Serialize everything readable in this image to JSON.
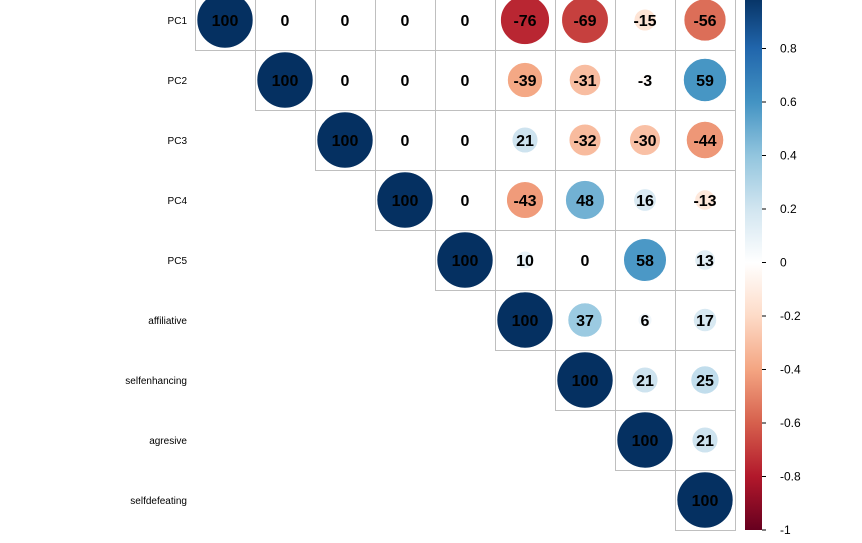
{
  "chart_data": {
    "type": "heatmap",
    "style": "upper-triangle correlation matrix, circles sized and colored by value",
    "variables": [
      "PC1",
      "PC2",
      "PC3",
      "PC4",
      "PC5",
      "affiliative",
      "selfenhancing",
      "agresive",
      "selfdefeating"
    ],
    "values": [
      [
        100,
        0,
        0,
        0,
        0,
        -76,
        -69,
        -15,
        -56
      ],
      [
        null,
        100,
        0,
        0,
        0,
        -39,
        -31,
        -3,
        59
      ],
      [
        null,
        null,
        100,
        0,
        0,
        21,
        -32,
        -30,
        -44
      ],
      [
        null,
        null,
        null,
        100,
        0,
        -43,
        48,
        16,
        -13
      ],
      [
        null,
        null,
        null,
        null,
        100,
        10,
        0,
        58,
        13
      ],
      [
        null,
        null,
        null,
        null,
        null,
        100,
        37,
        6,
        17
      ],
      [
        null,
        null,
        null,
        null,
        null,
        null,
        100,
        21,
        25
      ],
      [
        null,
        null,
        null,
        null,
        null,
        null,
        null,
        100,
        21
      ],
      [
        null,
        null,
        null,
        null,
        null,
        null,
        null,
        null,
        100
      ]
    ],
    "legend": {
      "position": "right",
      "range": [
        -1,
        1
      ],
      "ticks": [
        "-1",
        "-0.8",
        "-0.6",
        "-0.4",
        "-0.2",
        "0",
        "0.2",
        "0.4",
        "0.6",
        "0.8"
      ],
      "colors": [
        "#67001F",
        "#B2182B",
        "#D6604D",
        "#F4A582",
        "#FDDBC7",
        "#FFFFFF",
        "#D1E5F0",
        "#92C5DE",
        "#4393C3",
        "#2166AC",
        "#053061"
      ]
    }
  }
}
